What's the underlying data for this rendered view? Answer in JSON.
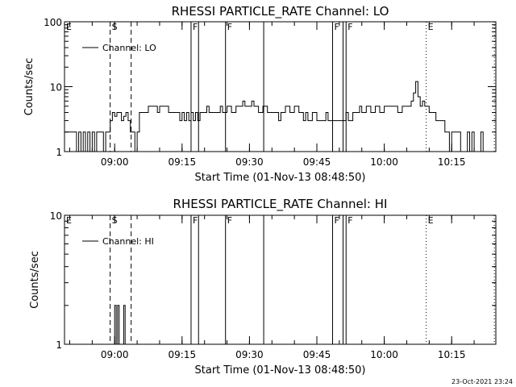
{
  "chart_data": [
    {
      "type": "line",
      "title": "RHESSI PARTICLE_RATE Channel: LO",
      "xlabel": "Start Time (01-Nov-13 08:48:50)",
      "ylabel": "Counts/sec",
      "y_scale": "log",
      "ylim": [
        1,
        100
      ],
      "y_ticks": [
        {
          "v": 1,
          "label": "1"
        },
        {
          "v": 10,
          "label": "10"
        },
        {
          "v": 100,
          "label": "100"
        }
      ],
      "xlim": [
        "08:48:50",
        "10:24:50"
      ],
      "x_ticks": [
        "09:00",
        "09:15",
        "09:30",
        "09:45",
        "10:00",
        "10:15"
      ],
      "legend": {
        "label": "Channel: LO",
        "position": "top-left"
      },
      "series": [
        {
          "name": "Channel: LO",
          "points": [
            [
              "08:49:00",
              2
            ],
            [
              "08:51:00",
              2
            ],
            [
              "08:51:30",
              1
            ],
            [
              "08:52:00",
              2
            ],
            [
              "08:52:30",
              1
            ],
            [
              "08:53:00",
              2
            ],
            [
              "08:53:30",
              1
            ],
            [
              "08:54:00",
              2
            ],
            [
              "08:54:30",
              1
            ],
            [
              "08:55:00",
              2
            ],
            [
              "08:55:30",
              1
            ],
            [
              "08:56:00",
              2
            ],
            [
              "08:57:00",
              2
            ],
            [
              "08:57:30",
              1
            ],
            [
              "08:58:00",
              2
            ],
            [
              "08:58:30",
              2
            ],
            [
              "08:59:00",
              3
            ],
            [
              "08:59:30",
              4
            ],
            [
              "09:00:00",
              3.5
            ],
            [
              "09:00:30",
              4
            ],
            [
              "09:01:00",
              4
            ],
            [
              "09:01:30",
              3
            ],
            [
              "09:02:00",
              3.5
            ],
            [
              "09:02:30",
              4
            ],
            [
              "09:03:00",
              3
            ],
            [
              "09:03:30",
              2
            ],
            [
              "09:04:00",
              2
            ],
            [
              "09:04:30",
              1
            ],
            [
              "09:05:00",
              2
            ],
            [
              "09:05:30",
              4
            ],
            [
              "09:07:00",
              4
            ],
            [
              "09:07:30",
              5
            ],
            [
              "09:09:00",
              5
            ],
            [
              "09:09:30",
              4
            ],
            [
              "09:10:00",
              5
            ],
            [
              "09:11:30",
              5
            ],
            [
              "09:12:00",
              4
            ],
            [
              "09:14:00",
              4
            ],
            [
              "09:14:30",
              3
            ],
            [
              "09:15:00",
              4
            ],
            [
              "09:15:30",
              3
            ],
            [
              "09:16:00",
              4
            ],
            [
              "09:16:30",
              3
            ],
            [
              "09:17:00",
              4
            ],
            [
              "09:17:30",
              3
            ],
            [
              "09:18:00",
              4
            ],
            [
              "09:18:30",
              3
            ],
            [
              "09:19:00",
              4
            ],
            [
              "09:20:00",
              4
            ],
            [
              "09:20:30",
              5
            ],
            [
              "09:21:00",
              4
            ],
            [
              "09:23:00",
              4
            ],
            [
              "09:23:30",
              5
            ],
            [
              "09:24:00",
              4
            ],
            [
              "09:25:00",
              5
            ],
            [
              "09:26:00",
              4
            ],
            [
              "09:27:00",
              5
            ],
            [
              "09:28:00",
              5
            ],
            [
              "09:28:30",
              6
            ],
            [
              "09:29:00",
              5
            ],
            [
              "09:30:00",
              5
            ],
            [
              "09:30:30",
              6
            ],
            [
              "09:31:00",
              5
            ],
            [
              "09:32:00",
              4
            ],
            [
              "09:33:00",
              5
            ],
            [
              "09:34:00",
              4
            ],
            [
              "09:36:00",
              4
            ],
            [
              "09:36:30",
              3
            ],
            [
              "09:37:00",
              4
            ],
            [
              "09:38:00",
              5
            ],
            [
              "09:39:00",
              4
            ],
            [
              "09:40:00",
              5
            ],
            [
              "09:41:00",
              4
            ],
            [
              "09:42:00",
              3
            ],
            [
              "09:42:30",
              4
            ],
            [
              "09:43:00",
              3
            ],
            [
              "09:44:00",
              4
            ],
            [
              "09:45:00",
              3
            ],
            [
              "09:46:00",
              3
            ],
            [
              "09:46:30",
              3
            ],
            [
              "09:47:00",
              4
            ],
            [
              "09:47:30",
              3
            ],
            [
              "09:48:00",
              3
            ],
            [
              "09:51:00",
              3
            ],
            [
              "09:51:30",
              4
            ],
            [
              "09:52:00",
              3
            ],
            [
              "09:53:00",
              4
            ],
            [
              "09:54:00",
              4
            ],
            [
              "09:54:30",
              5
            ],
            [
              "09:55:00",
              4
            ],
            [
              "09:56:00",
              5
            ],
            [
              "09:57:00",
              4
            ],
            [
              "09:58:00",
              5
            ],
            [
              "09:59:00",
              4
            ],
            [
              "10:00:00",
              5
            ],
            [
              "10:02:00",
              5
            ],
            [
              "10:03:00",
              4
            ],
            [
              "10:04:00",
              5
            ],
            [
              "10:05:00",
              5
            ],
            [
              "10:06:00",
              6
            ],
            [
              "10:06:30",
              8
            ],
            [
              "10:07:00",
              12
            ],
            [
              "10:07:30",
              7
            ],
            [
              "10:08:00",
              5
            ],
            [
              "10:08:30",
              6
            ],
            [
              "10:09:00",
              5
            ],
            [
              "10:10:00",
              4
            ],
            [
              "10:11:00",
              4
            ],
            [
              "10:11:30",
              3
            ],
            [
              "10:12:00",
              3
            ],
            [
              "10:13:00",
              3
            ],
            [
              "10:13:30",
              2
            ],
            [
              "10:14:00",
              2
            ],
            [
              "10:14:30",
              1
            ],
            [
              "10:15:00",
              2
            ],
            [
              "10:16:00",
              2
            ],
            [
              "10:17:00",
              1
            ],
            [
              "10:18:00",
              1
            ],
            [
              "10:18:30",
              2
            ],
            [
              "10:19:00",
              1
            ],
            [
              "10:19:30",
              2
            ],
            [
              "10:20:00",
              1
            ],
            [
              "10:21:00",
              1
            ],
            [
              "10:21:30",
              2
            ],
            [
              "10:22:00",
              1
            ]
          ]
        }
      ],
      "markers": [
        {
          "label": "E",
          "t": "08:48:50",
          "style": "none"
        },
        {
          "label": "S",
          "t": "08:59:00",
          "style": "dashed"
        },
        {
          "label": "",
          "t": "09:03:40",
          "style": "dashed"
        },
        {
          "label": "F",
          "t": "09:17:00",
          "style": "solid"
        },
        {
          "label": "",
          "t": "09:18:40",
          "style": "solid"
        },
        {
          "label": "F",
          "t": "09:24:40",
          "style": "solid"
        },
        {
          "label": "",
          "t": "09:33:10",
          "style": "solid"
        },
        {
          "label": "F",
          "t": "09:48:30",
          "style": "solid"
        },
        {
          "label": "F",
          "t": "09:51:30",
          "style": "solid"
        },
        {
          "label": "",
          "t": "09:50:50",
          "style": "solid"
        },
        {
          "label": "E",
          "t": "10:09:20",
          "style": "dotted"
        },
        {
          "label": "",
          "t": "10:24:30",
          "style": "dotted"
        }
      ]
    },
    {
      "type": "line",
      "title": "RHESSI PARTICLE_RATE Channel: HI",
      "xlabel": "Start Time (01-Nov-13 08:48:50)",
      "ylabel": "Counts/sec",
      "y_scale": "log",
      "ylim": [
        1,
        10
      ],
      "y_ticks": [
        {
          "v": 1,
          "label": "1"
        },
        {
          "v": 10,
          "label": "10"
        }
      ],
      "xlim": [
        "08:48:50",
        "10:24:50"
      ],
      "x_ticks": [
        "09:00",
        "09:15",
        "09:30",
        "09:45",
        "10:00",
        "10:15"
      ],
      "legend": {
        "label": "Channel: HI",
        "position": "top-left"
      },
      "series": [
        {
          "name": "Channel: HI",
          "points": [
            [
              "08:59:30",
              1
            ],
            [
              "09:00:00",
              2
            ],
            [
              "09:00:20",
              1
            ],
            [
              "09:00:40",
              2
            ],
            [
              "09:01:00",
              1
            ],
            [
              "09:01:40",
              1
            ],
            [
              "09:02:00",
              2
            ],
            [
              "09:02:20",
              1
            ]
          ]
        }
      ],
      "markers": [
        {
          "label": "E",
          "t": "08:48:50",
          "style": "none"
        },
        {
          "label": "S",
          "t": "08:59:00",
          "style": "dashed"
        },
        {
          "label": "",
          "t": "09:03:40",
          "style": "dashed"
        },
        {
          "label": "F",
          "t": "09:17:00",
          "style": "solid"
        },
        {
          "label": "",
          "t": "09:18:40",
          "style": "solid"
        },
        {
          "label": "F",
          "t": "09:24:40",
          "style": "solid"
        },
        {
          "label": "",
          "t": "09:33:10",
          "style": "solid"
        },
        {
          "label": "F",
          "t": "09:48:30",
          "style": "solid"
        },
        {
          "label": "F",
          "t": "09:51:30",
          "style": "solid"
        },
        {
          "label": "",
          "t": "09:50:50",
          "style": "solid"
        },
        {
          "label": "E",
          "t": "10:09:20",
          "style": "dotted"
        },
        {
          "label": "",
          "t": "10:24:30",
          "style": "dotted"
        }
      ]
    }
  ],
  "footer": {
    "timestamp": "23-Oct-2021 23:24"
  }
}
